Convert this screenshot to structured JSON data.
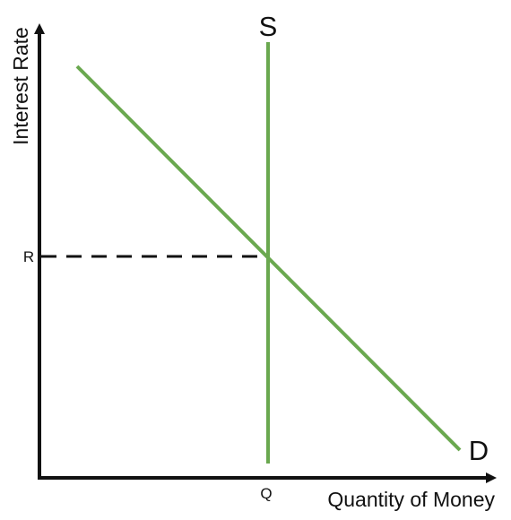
{
  "diagram": {
    "title": "",
    "axes": {
      "x_label": "Quantity of Money",
      "y_label": "Interest Rate"
    },
    "curves": {
      "supply": {
        "label": "S",
        "kind": "vertical"
      },
      "demand": {
        "label": "D",
        "kind": "downward-sloping"
      }
    },
    "equilibrium": {
      "rate_label": "R",
      "quantity_label": "Q"
    },
    "colors": {
      "curve": "#6aa84f",
      "axis": "#111111",
      "guide": "#111111",
      "background": "#ffffff"
    }
  }
}
